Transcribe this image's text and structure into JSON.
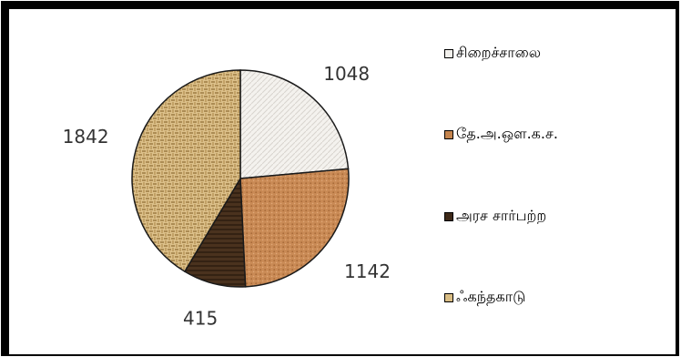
{
  "chart_data": {
    "type": "pie",
    "title": "",
    "categories": [
      "சிறைச்சாலை",
      "தே.அ.ஒள.க.ச.",
      "அரச சார்பற்ற",
      "ஃகந்தகாடு"
    ],
    "values": [
      1048,
      1142,
      415,
      1842
    ],
    "colors": [
      "#f2f0ec",
      "#c4844e",
      "#3e2918",
      "#d9bd84"
    ],
    "legend_position": "right",
    "start_angle_deg": 0,
    "direction": "clockwise"
  }
}
